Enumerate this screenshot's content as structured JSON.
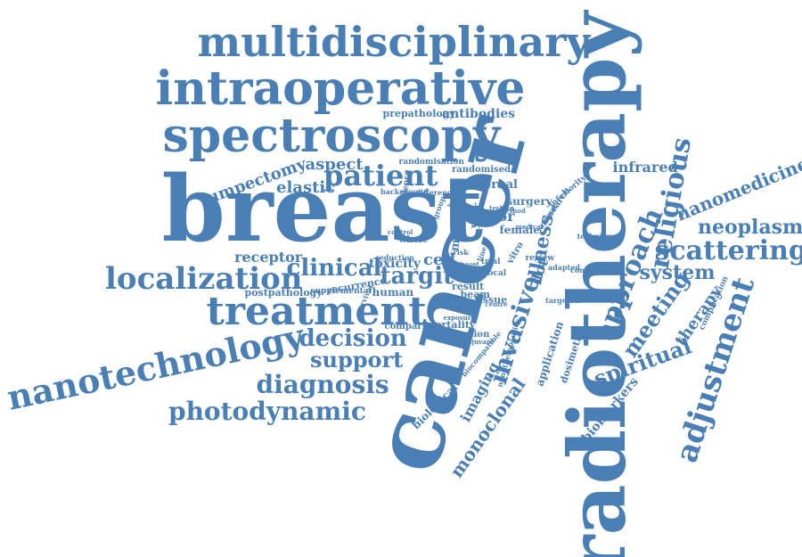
{
  "color": "#4a7fb5",
  "words": [
    "cancer",
    "radiotherapy",
    "breast",
    "multidisciplinary",
    "intraoperative",
    "spectroscopy",
    "treatment",
    "nanotechnology",
    "localization",
    "patient",
    "clinical",
    "decision",
    "support",
    "diagnosis",
    "photodynamic",
    "approach",
    "adjustment",
    "religious",
    "scattering",
    "neoplasm",
    "nanomedicine",
    "spiritual",
    "meeting",
    "system",
    "therapy",
    "invasive",
    "targit",
    "illness",
    "tumor",
    "imaging",
    "monoclonal",
    "lumpectomy",
    "aspect",
    "elastic",
    "receptor",
    "antibodies",
    "prepathology",
    "infrared",
    "biomarkers",
    "cell",
    "toxicity",
    "female",
    "mouse",
    "year",
    "external",
    "surgery",
    "application",
    "dosimetry",
    "biological",
    "result",
    "beam",
    "tissue",
    "human",
    "postpathology",
    "recurrence",
    "supplemental",
    "mortality",
    "comparison",
    "inception",
    "randomised",
    "randomisation",
    "evidence",
    "background",
    "difference",
    "reduction",
    "whole",
    "control",
    "group",
    "research",
    "animal",
    "inferiority",
    "technique",
    "concurrent",
    "adapted",
    "targeted",
    "complication",
    "dot",
    "vitro",
    "review",
    "trial",
    "local",
    "line",
    "risk",
    "centre",
    "method",
    "testing",
    "health",
    "exposure",
    "single",
    "nanotherapeutics",
    "biocompatible",
    "boost",
    "adjuvant",
    "survival",
    "medical"
  ]
}
